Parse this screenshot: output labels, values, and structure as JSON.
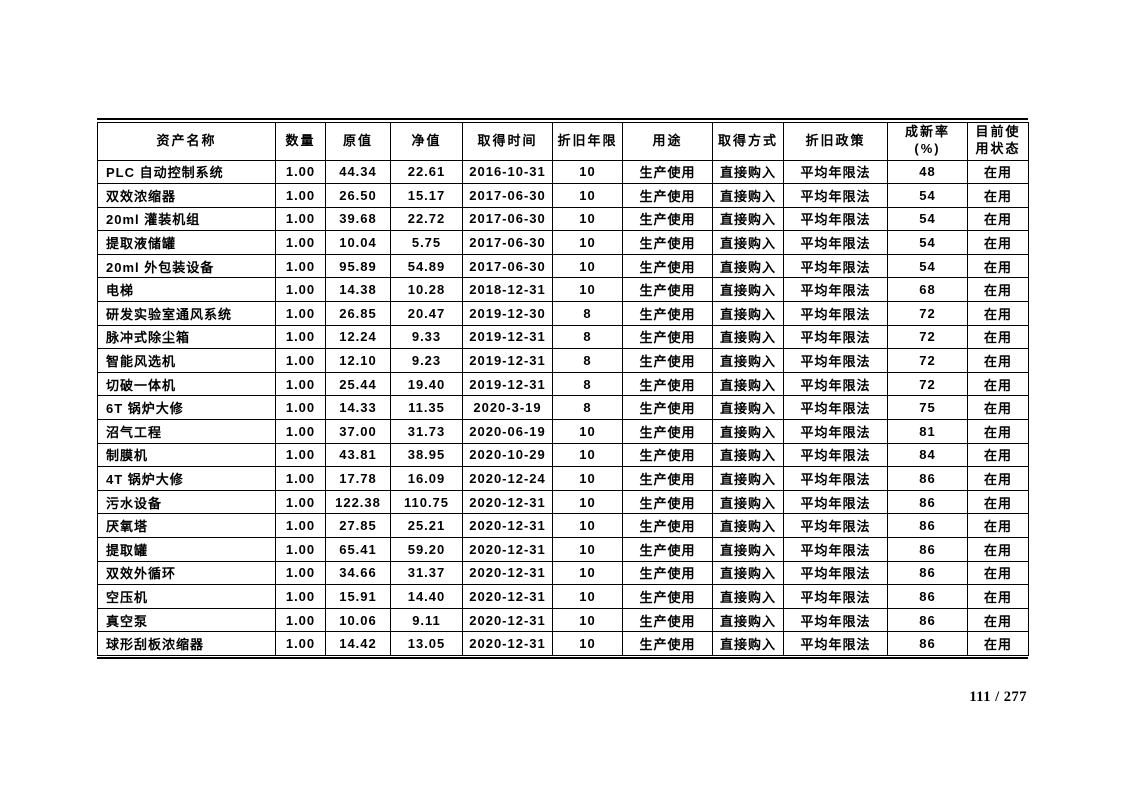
{
  "page": {
    "indicator": "111 / 277"
  },
  "table": {
    "columns": [
      "资产名称",
      "数量",
      "原值",
      "净值",
      "取得时间",
      "折旧年限",
      "用途",
      "取得方式",
      "折旧政策",
      "成新率 (%)",
      "目前使\n用状态"
    ],
    "rows": [
      [
        "PLC 自动控制系统",
        "1.00",
        "44.34",
        "22.61",
        "2016-10-31",
        "10",
        "生产使用",
        "直接购入",
        "平均年限法",
        "48",
        "在用"
      ],
      [
        "双效浓缩器",
        "1.00",
        "26.50",
        "15.17",
        "2017-06-30",
        "10",
        "生产使用",
        "直接购入",
        "平均年限法",
        "54",
        "在用"
      ],
      [
        "20ml 灌装机组",
        "1.00",
        "39.68",
        "22.72",
        "2017-06-30",
        "10",
        "生产使用",
        "直接购入",
        "平均年限法",
        "54",
        "在用"
      ],
      [
        "提取液储罐",
        "1.00",
        "10.04",
        "5.75",
        "2017-06-30",
        "10",
        "生产使用",
        "直接购入",
        "平均年限法",
        "54",
        "在用"
      ],
      [
        "20ml 外包装设备",
        "1.00",
        "95.89",
        "54.89",
        "2017-06-30",
        "10",
        "生产使用",
        "直接购入",
        "平均年限法",
        "54",
        "在用"
      ],
      [
        "电梯",
        "1.00",
        "14.38",
        "10.28",
        "2018-12-31",
        "10",
        "生产使用",
        "直接购入",
        "平均年限法",
        "68",
        "在用"
      ],
      [
        "研发实验室通风系统",
        "1.00",
        "26.85",
        "20.47",
        "2019-12-30",
        "8",
        "生产使用",
        "直接购入",
        "平均年限法",
        "72",
        "在用"
      ],
      [
        "脉冲式除尘箱",
        "1.00",
        "12.24",
        "9.33",
        "2019-12-31",
        "8",
        "生产使用",
        "直接购入",
        "平均年限法",
        "72",
        "在用"
      ],
      [
        "智能风选机",
        "1.00",
        "12.10",
        "9.23",
        "2019-12-31",
        "8",
        "生产使用",
        "直接购入",
        "平均年限法",
        "72",
        "在用"
      ],
      [
        "切破一体机",
        "1.00",
        "25.44",
        "19.40",
        "2019-12-31",
        "8",
        "生产使用",
        "直接购入",
        "平均年限法",
        "72",
        "在用"
      ],
      [
        "6T 锅炉大修",
        "1.00",
        "14.33",
        "11.35",
        "2020-3-19",
        "8",
        "生产使用",
        "直接购入",
        "平均年限法",
        "75",
        "在用"
      ],
      [
        "沼气工程",
        "1.00",
        "37.00",
        "31.73",
        "2020-06-19",
        "10",
        "生产使用",
        "直接购入",
        "平均年限法",
        "81",
        "在用"
      ],
      [
        "制膜机",
        "1.00",
        "43.81",
        "38.95",
        "2020-10-29",
        "10",
        "生产使用",
        "直接购入",
        "平均年限法",
        "84",
        "在用"
      ],
      [
        "4T 锅炉大修",
        "1.00",
        "17.78",
        "16.09",
        "2020-12-24",
        "10",
        "生产使用",
        "直接购入",
        "平均年限法",
        "86",
        "在用"
      ],
      [
        "污水设备",
        "1.00",
        "122.38",
        "110.75",
        "2020-12-31",
        "10",
        "生产使用",
        "直接购入",
        "平均年限法",
        "86",
        "在用"
      ],
      [
        "厌氧塔",
        "1.00",
        "27.85",
        "25.21",
        "2020-12-31",
        "10",
        "生产使用",
        "直接购入",
        "平均年限法",
        "86",
        "在用"
      ],
      [
        "提取罐",
        "1.00",
        "65.41",
        "59.20",
        "2020-12-31",
        "10",
        "生产使用",
        "直接购入",
        "平均年限法",
        "86",
        "在用"
      ],
      [
        "双效外循环",
        "1.00",
        "34.66",
        "31.37",
        "2020-12-31",
        "10",
        "生产使用",
        "直接购入",
        "平均年限法",
        "86",
        "在用"
      ],
      [
        "空压机",
        "1.00",
        "15.91",
        "14.40",
        "2020-12-31",
        "10",
        "生产使用",
        "直接购入",
        "平均年限法",
        "86",
        "在用"
      ],
      [
        "真空泵",
        "1.00",
        "10.06",
        "9.11",
        "2020-12-31",
        "10",
        "生产使用",
        "直接购入",
        "平均年限法",
        "86",
        "在用"
      ],
      [
        "球形刮板浓缩器",
        "1.00",
        "14.42",
        "13.05",
        "2020-12-31",
        "10",
        "生产使用",
        "直接购入",
        "平均年限法",
        "86",
        "在用"
      ]
    ]
  }
}
